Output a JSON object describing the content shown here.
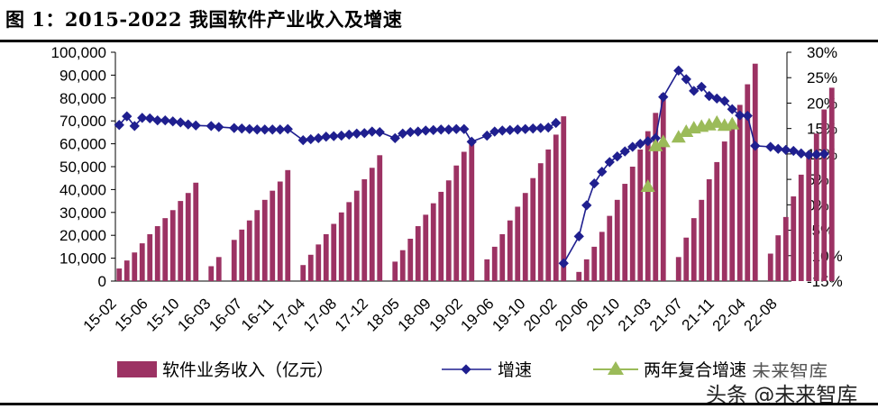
{
  "header": {
    "title": "图 1：2015-2022 我国软件产业收入及增速"
  },
  "watermarks": {
    "brand": "未来智库",
    "attribution": "头条 @未来智库"
  },
  "colors": {
    "bar": "#9c3263",
    "line": "#1f1f8f",
    "triangle": "#9bbb59"
  },
  "chart_data": {
    "type": "bar",
    "left_axis": {
      "ticks": [
        "0",
        "10,000",
        "20,000",
        "30,000",
        "40,000",
        "50,000",
        "60,000",
        "70,000",
        "80,000",
        "90,000",
        "100,000"
      ],
      "ylim": [
        0,
        100000
      ]
    },
    "right_axis": {
      "ticks": [
        "-15%",
        "-10%",
        "-5%",
        "0%",
        "5%",
        "10%",
        "15%",
        "20%",
        "25%",
        "30%"
      ],
      "ylim": [
        -15,
        30
      ]
    },
    "x_tick_labels": [
      "15-02",
      "15-06",
      "15-10",
      "16-03",
      "16-07",
      "16-11",
      "17-04",
      "17-08",
      "17-12",
      "18-05",
      "18-09",
      "19-02",
      "19-06",
      "19-10",
      "20-02",
      "20-06",
      "20-10",
      "21-03",
      "21-07",
      "21-11",
      "22-04",
      "22-08"
    ],
    "legend": [
      "软件业务收入（亿元）",
      "增速",
      "两年复合增速"
    ],
    "series": [
      {
        "name": "软件业务收入（亿元）",
        "axis": "left",
        "type": "bar",
        "groups": [
          [
            5500,
            9000,
            12500,
            16500,
            20500,
            24000,
            27500,
            31000,
            35000,
            38500,
            43000
          ],
          [
            6500,
            10500
          ],
          [
            18000,
            22500,
            26500,
            31000,
            35500,
            39500,
            43500,
            48500
          ],
          [
            7000,
            11500,
            16000,
            20500,
            25000,
            30000,
            34500,
            39500,
            44500,
            49500,
            55000
          ],
          [
            8500,
            13500,
            18500,
            24000,
            29000,
            34000,
            39000,
            44000,
            50500,
            56500,
            62000
          ],
          [
            9500,
            15000,
            20500,
            26500,
            32500,
            38500,
            45000,
            51500,
            57500,
            64000,
            72000
          ],
          [
            4000,
            9500,
            15000,
            21500,
            28500,
            35500,
            42500,
            50000,
            57500,
            65500,
            73500,
            82000
          ],
          [
            10500,
            19000,
            27500,
            35500,
            44500,
            52000,
            61000,
            68500,
            77000,
            86000,
            95000
          ],
          [
            12000,
            20000,
            28000,
            37000,
            46500,
            55000,
            64500,
            75000,
            84500
          ]
        ]
      },
      {
        "name": "增速",
        "axis": "right",
        "type": "line",
        "segments": [
          [
            15.7,
            17.4,
            15.5,
            17.1,
            17.0,
            16.6,
            16.6,
            16.4,
            16.2,
            15.8,
            15.6,
            15.5,
            15.3,
            15.1,
            15.0,
            14.9,
            14.8,
            14.8,
            14.8,
            14.8,
            14.9,
            12.7,
            12.9,
            13.1,
            13.4,
            13.5,
            13.6,
            13.8,
            14.0,
            14.1,
            14.4,
            14.3,
            13.1,
            14.0,
            14.3,
            14.4,
            14.6,
            14.7,
            14.8,
            14.8,
            14.9,
            14.9,
            12.4,
            13.6,
            14.4,
            14.6,
            14.7,
            14.8,
            14.9,
            15.0,
            15.1,
            15.2,
            16.1
          ],
          [
            -11.5,
            -6.2,
            -0.1,
            4.2,
            6.5,
            8.4,
            9.5,
            10.5,
            11.4,
            12.0,
            12.5,
            13.1,
            21.2,
            26.4,
            24.7,
            22.4,
            23.2,
            21.4,
            20.9,
            20.4,
            18.8,
            17.6,
            17.5,
            11.6,
            11.4,
            11.0,
            10.8,
            10.6,
            10.1,
            9.8,
            9.9,
            10.0
          ]
        ]
      },
      {
        "name": "两年复合增速",
        "axis": "right",
        "type": "scatter",
        "values": [
          3.6,
          11.6,
          12.4,
          13.3,
          14.4,
          15.1,
          15.4,
          15.7,
          16.2,
          15.6,
          15.9
        ]
      }
    ]
  }
}
